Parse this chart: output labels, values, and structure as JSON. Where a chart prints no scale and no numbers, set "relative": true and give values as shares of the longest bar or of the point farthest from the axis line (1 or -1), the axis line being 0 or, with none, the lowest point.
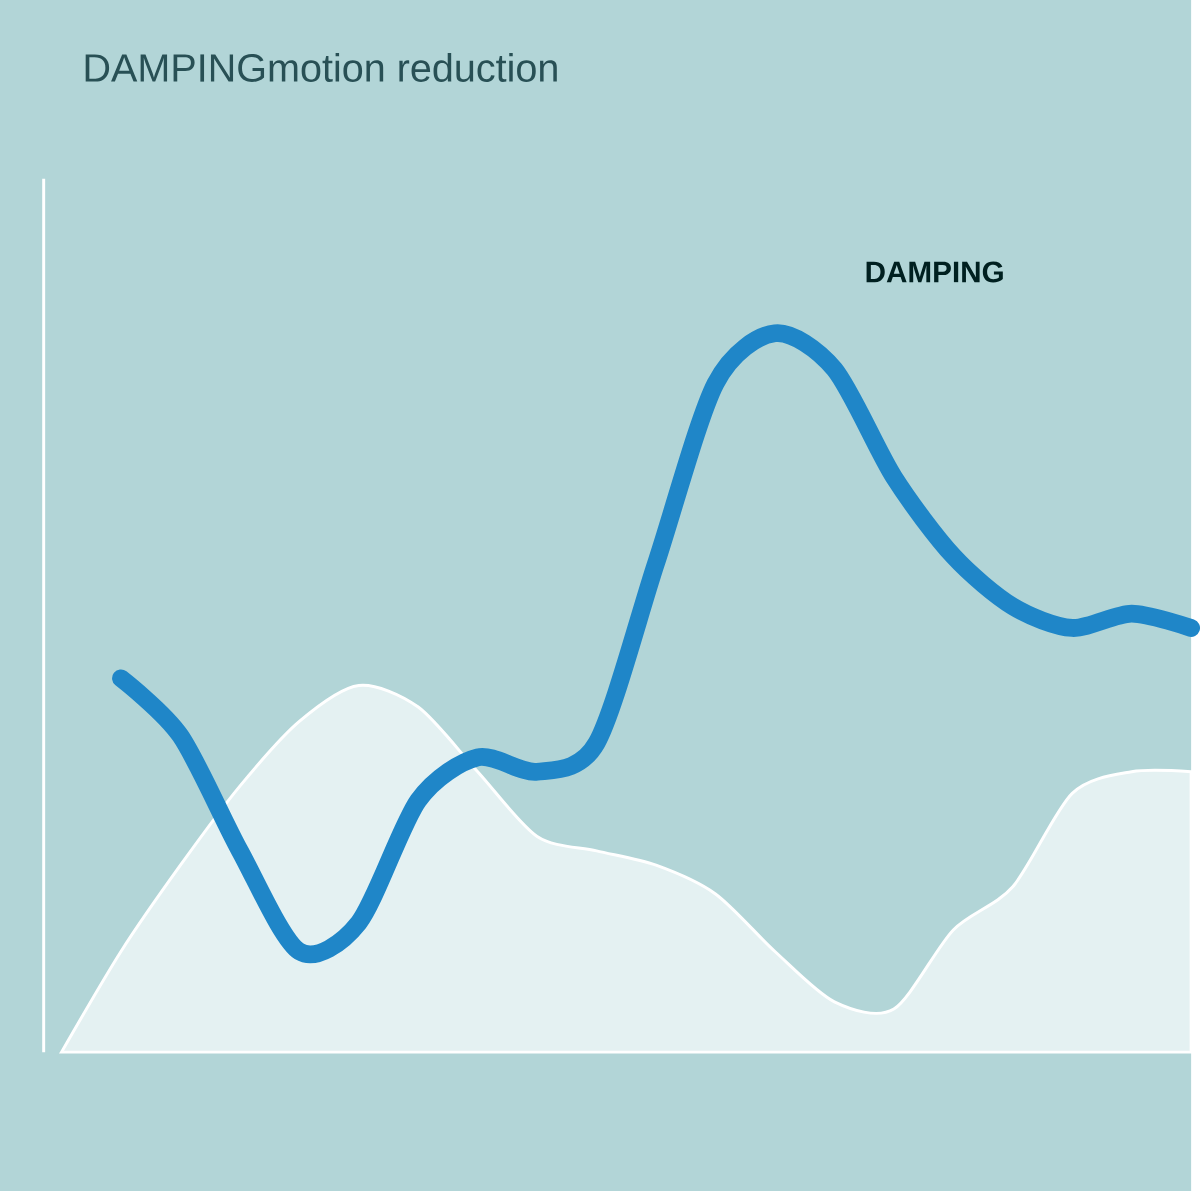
{
  "chart_data": {
    "type": "line",
    "title": "DAMPINGmotion reduction",
    "relative": true,
    "categories": [
      null,
      null,
      null,
      null,
      null,
      null,
      null,
      null,
      null,
      null,
      null,
      null,
      null,
      null,
      null,
      null,
      null,
      null,
      null,
      null
    ],
    "series": [
      {
        "type": "area",
        "color": "#e4f1f2",
        "values": [
          0,
          0.14,
          0.26,
          0.37,
          0.46,
          0.51,
          0.48,
          0.39,
          0.3,
          0.28,
          0.26,
          0.22,
          0.14,
          0.07,
          0.06,
          0.17,
          0.23,
          0.36,
          0.39,
          0.39
        ]
      },
      {
        "color": "#1f86c8",
        "values": [
          null,
          0.52,
          0.44,
          0.28,
          0.14,
          0.18,
          0.35,
          0.41,
          0.39,
          0.43,
          0.68,
          0.93,
          1.0,
          0.95,
          0.8,
          0.69,
          0.62,
          0.59,
          0.61,
          0.59
        ]
      }
    ],
    "annotations": [
      "DAMPING"
    ]
  }
}
